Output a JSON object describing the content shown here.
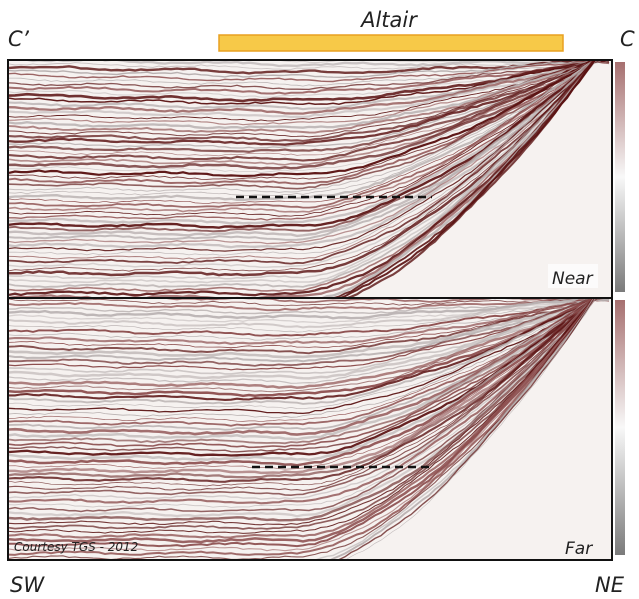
{
  "header": {
    "title": "Altair",
    "left_label": "C’",
    "right_label": "C"
  },
  "panels": [
    {
      "label": "Near"
    },
    {
      "label": "Far",
      "credit": "Courtesy TGS - 2012"
    }
  ],
  "footer": {
    "left": "SW",
    "right": "NE"
  }
}
